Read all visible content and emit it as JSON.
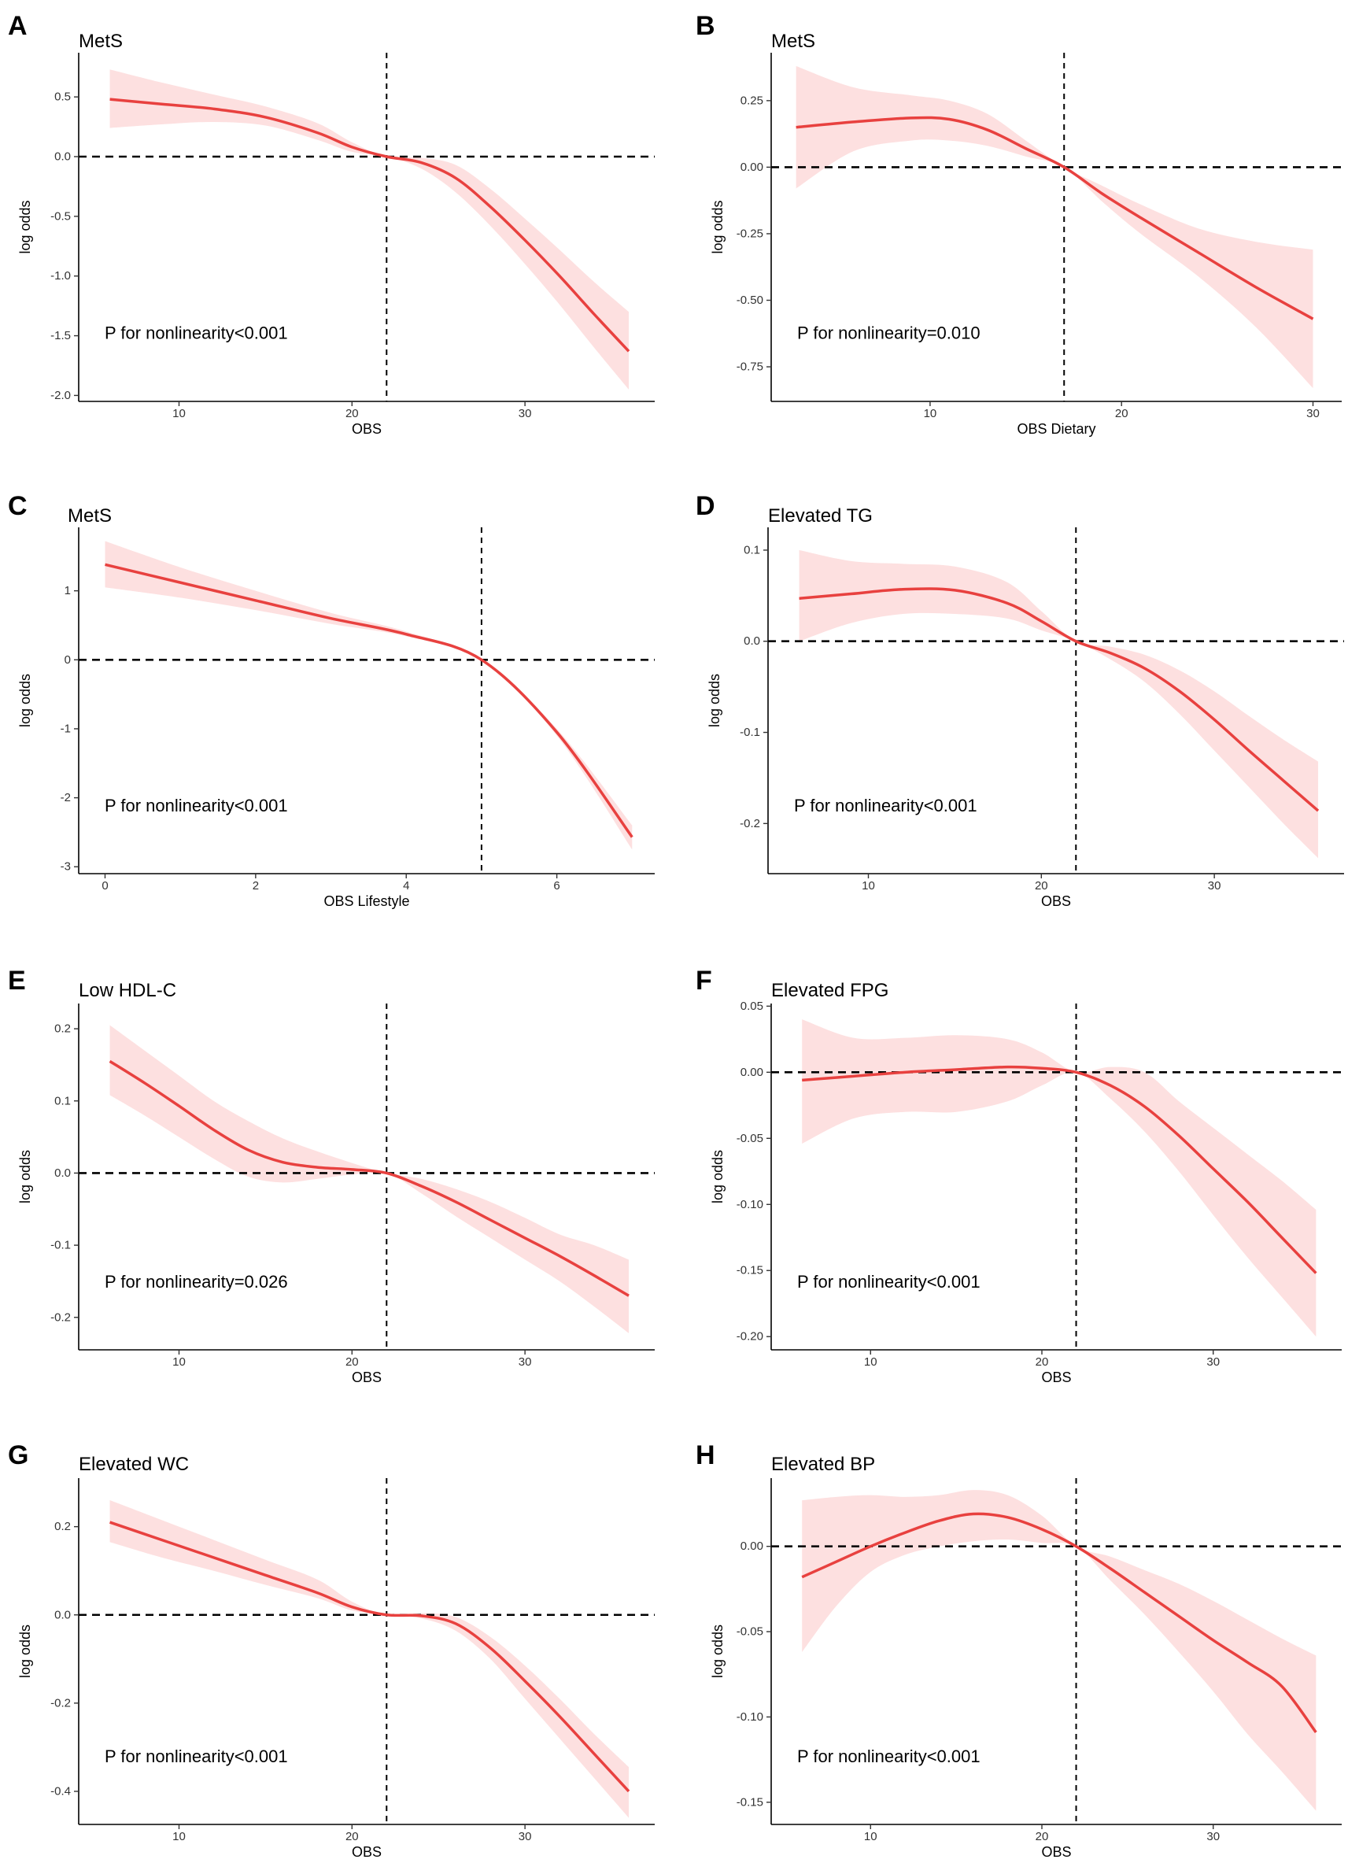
{
  "colors": {
    "line": "#e8413f",
    "band": "#fde0e0",
    "axis": "#000000",
    "tick_text": "#333333"
  },
  "chart_data": [
    {
      "letter": "A",
      "type": "line",
      "title": "MetS",
      "xlabel": "OBS",
      "ylabel": "log odds",
      "xlim": [
        4.2,
        37.5
      ],
      "ylim": [
        -2.05,
        0.87
      ],
      "xticks": [
        10,
        20,
        30
      ],
      "xtick_labels": [
        "10",
        "20",
        "30"
      ],
      "yticks": [
        -2.0,
        -1.5,
        -1.0,
        -0.5,
        0.0,
        0.5
      ],
      "ytick_labels": [
        "-2.0",
        "-1.5",
        "-1.0",
        "-0.5",
        "0.0",
        "0.5"
      ],
      "hline_y": 0,
      "vline_x": 22,
      "annotation": "P for nonlinearity<0.001",
      "x": [
        6,
        9,
        12,
        15,
        18,
        20,
        22,
        24,
        26,
        28,
        30,
        32,
        34,
        36
      ],
      "y": [
        0.48,
        0.44,
        0.4,
        0.33,
        0.2,
        0.08,
        0.0,
        -0.05,
        -0.18,
        -0.42,
        -0.7,
        -1.0,
        -1.32,
        -1.63
      ],
      "lower": [
        0.24,
        0.27,
        0.29,
        0.26,
        0.14,
        0.04,
        0.0,
        -0.1,
        -0.3,
        -0.58,
        -0.9,
        -1.24,
        -1.6,
        -1.95
      ],
      "upper": [
        0.73,
        0.62,
        0.52,
        0.42,
        0.28,
        0.12,
        0.0,
        -0.01,
        -0.07,
        -0.27,
        -0.52,
        -0.78,
        -1.05,
        -1.3
      ]
    },
    {
      "letter": "B",
      "type": "line",
      "title": "MetS",
      "xlabel": "OBS Dietary",
      "ylabel": "log odds",
      "xlim": [
        1.7,
        31.5
      ],
      "ylim": [
        -0.88,
        0.43
      ],
      "xticks": [
        10,
        20,
        30
      ],
      "xtick_labels": [
        "10",
        "20",
        "30"
      ],
      "yticks": [
        -0.75,
        -0.5,
        -0.25,
        0.0,
        0.25
      ],
      "ytick_labels": [
        "-0.75",
        "-0.50",
        "-0.25",
        "0.00",
        "0.25"
      ],
      "hline_y": 0,
      "vline_x": 17,
      "annotation": "P for nonlinearity=0.010",
      "x": [
        3,
        6,
        9,
        11,
        13,
        15,
        17,
        19,
        21,
        24,
        27,
        30
      ],
      "y": [
        0.15,
        0.17,
        0.185,
        0.18,
        0.14,
        0.07,
        0.0,
        -0.1,
        -0.19,
        -0.32,
        -0.45,
        -0.57
      ],
      "lower": [
        -0.08,
        0.06,
        0.1,
        0.1,
        0.08,
        0.04,
        0.0,
        -0.13,
        -0.25,
        -0.41,
        -0.6,
        -0.83
      ],
      "upper": [
        0.38,
        0.3,
        0.27,
        0.25,
        0.2,
        0.1,
        0.0,
        -0.07,
        -0.14,
        -0.23,
        -0.28,
        -0.31
      ]
    },
    {
      "letter": "C",
      "type": "line",
      "title": "MetS",
      "xlabel": "OBS Lifestyle",
      "ylabel": "log odds",
      "xlim": [
        -0.35,
        7.3
      ],
      "ylim": [
        -3.1,
        1.92
      ],
      "xticks": [
        0,
        2,
        4,
        6
      ],
      "xtick_labels": [
        "0",
        "2",
        "4",
        "6"
      ],
      "yticks": [
        -3,
        -2,
        -1,
        0,
        1
      ],
      "ytick_labels": [
        "-3",
        "-2",
        "-1",
        "0",
        "1"
      ],
      "hline_y": 0,
      "vline_x": 5,
      "annotation": "P for nonlinearity<0.001",
      "x": [
        0,
        1,
        2,
        3,
        4,
        5,
        6,
        7
      ],
      "y": [
        1.38,
        1.12,
        0.86,
        0.6,
        0.37,
        0.0,
        -1.05,
        -2.57
      ],
      "lower": [
        1.05,
        0.9,
        0.72,
        0.52,
        0.34,
        0.0,
        -1.1,
        -2.75
      ],
      "upper": [
        1.72,
        1.34,
        1.0,
        0.68,
        0.41,
        0.0,
        -1.0,
        -2.4
      ]
    },
    {
      "letter": "D",
      "type": "line",
      "title": "Elevated TG",
      "xlabel": "OBS",
      "ylabel": "log odds",
      "xlim": [
        4.2,
        37.5
      ],
      "ylim": [
        -0.255,
        0.125
      ],
      "xticks": [
        10,
        20,
        30
      ],
      "xtick_labels": [
        "10",
        "20",
        "30"
      ],
      "yticks": [
        -0.2,
        -0.1,
        0.0,
        0.1
      ],
      "ytick_labels": [
        "-0.2",
        "-0.1",
        "0.0",
        "0.1"
      ],
      "hline_y": 0,
      "vline_x": 22,
      "annotation": "P for nonlinearity<0.001",
      "x": [
        6,
        9,
        12,
        15,
        18,
        20,
        22,
        24,
        26,
        28,
        30,
        32,
        34,
        36
      ],
      "y": [
        0.047,
        0.052,
        0.057,
        0.056,
        0.042,
        0.022,
        0.0,
        -0.013,
        -0.03,
        -0.055,
        -0.086,
        -0.12,
        -0.153,
        -0.186
      ],
      "lower": [
        0.0,
        0.02,
        0.03,
        0.03,
        0.025,
        0.012,
        0.0,
        -0.02,
        -0.045,
        -0.08,
        -0.12,
        -0.16,
        -0.2,
        -0.238
      ],
      "upper": [
        0.1,
        0.088,
        0.085,
        0.082,
        0.065,
        0.033,
        0.0,
        -0.006,
        -0.015,
        -0.032,
        -0.055,
        -0.082,
        -0.108,
        -0.132
      ]
    },
    {
      "letter": "E",
      "type": "line",
      "title": "Low HDL-C",
      "xlabel": "OBS",
      "ylabel": "log odds",
      "xlim": [
        4.2,
        37.5
      ],
      "ylim": [
        -0.245,
        0.235
      ],
      "xticks": [
        10,
        20,
        30
      ],
      "xtick_labels": [
        "10",
        "20",
        "30"
      ],
      "yticks": [
        -0.2,
        -0.1,
        0.0,
        0.1,
        0.2
      ],
      "ytick_labels": [
        "-0.2",
        "-0.1",
        "0.0",
        "0.1",
        "0.2"
      ],
      "hline_y": 0,
      "vline_x": 22,
      "annotation": "P for nonlinearity=0.026",
      "x": [
        6,
        8,
        10,
        12,
        14,
        16,
        18,
        20,
        22,
        24,
        26,
        28,
        30,
        32,
        34,
        36
      ],
      "y": [
        0.155,
        0.125,
        0.093,
        0.06,
        0.032,
        0.015,
        0.008,
        0.005,
        0.0,
        -0.018,
        -0.04,
        -0.065,
        -0.09,
        -0.115,
        -0.142,
        -0.17
      ],
      "lower": [
        0.108,
        0.08,
        0.05,
        0.02,
        -0.005,
        -0.013,
        -0.008,
        -0.002,
        0.0,
        -0.028,
        -0.06,
        -0.09,
        -0.12,
        -0.15,
        -0.185,
        -0.222
      ],
      "upper": [
        0.205,
        0.17,
        0.135,
        0.1,
        0.072,
        0.048,
        0.03,
        0.014,
        0.0,
        -0.008,
        -0.022,
        -0.04,
        -0.062,
        -0.085,
        -0.1,
        -0.12
      ]
    },
    {
      "letter": "F",
      "type": "line",
      "title": "Elevated FPG",
      "xlabel": "OBS",
      "ylabel": "log odds",
      "xlim": [
        4.2,
        37.5
      ],
      "ylim": [
        -0.21,
        0.052
      ],
      "xticks": [
        10,
        20,
        30
      ],
      "xtick_labels": [
        "10",
        "20",
        "30"
      ],
      "yticks": [
        -0.2,
        -0.15,
        -0.1,
        -0.05,
        0.0,
        0.05
      ],
      "ytick_labels": [
        "-0.20",
        "-0.15",
        "-0.10",
        "-0.05",
        "0.00",
        "0.05"
      ],
      "hline_y": 0,
      "vline_x": 22,
      "annotation": "P for nonlinearity<0.001",
      "x": [
        6,
        9,
        12,
        15,
        18,
        20,
        22,
        24,
        26,
        28,
        30,
        32,
        34,
        36
      ],
      "y": [
        -0.006,
        -0.003,
        0.0,
        0.002,
        0.004,
        0.003,
        0.0,
        -0.01,
        -0.026,
        -0.048,
        -0.073,
        -0.098,
        -0.125,
        -0.152
      ],
      "lower": [
        -0.054,
        -0.035,
        -0.03,
        -0.03,
        -0.022,
        -0.01,
        0.0,
        -0.02,
        -0.045,
        -0.075,
        -0.108,
        -0.14,
        -0.17,
        -0.2
      ],
      "upper": [
        0.04,
        0.026,
        0.026,
        0.028,
        0.025,
        0.015,
        0.0,
        0.004,
        0.0,
        -0.022,
        -0.042,
        -0.062,
        -0.082,
        -0.104
      ]
    },
    {
      "letter": "G",
      "type": "line",
      "title": "Elevated WC",
      "xlabel": "OBS",
      "ylabel": "log odds",
      "xlim": [
        4.2,
        37.5
      ],
      "ylim": [
        -0.475,
        0.31
      ],
      "xticks": [
        10,
        20,
        30
      ],
      "xtick_labels": [
        "10",
        "20",
        "30"
      ],
      "yticks": [
        -0.4,
        -0.2,
        0.0,
        0.2
      ],
      "ytick_labels": [
        "-0.4",
        "-0.2",
        "0.0",
        "0.2"
      ],
      "hline_y": 0,
      "vline_x": 22,
      "annotation": "P for nonlinearity<0.001",
      "x": [
        6,
        9,
        12,
        15,
        18,
        20,
        22,
        24,
        26,
        28,
        30,
        32,
        34,
        36
      ],
      "y": [
        0.21,
        0.17,
        0.13,
        0.09,
        0.05,
        0.018,
        0.0,
        -0.002,
        -0.02,
        -0.075,
        -0.15,
        -0.23,
        -0.315,
        -0.4
      ],
      "lower": [
        0.165,
        0.13,
        0.1,
        0.068,
        0.038,
        0.01,
        0.0,
        -0.008,
        -0.036,
        -0.1,
        -0.19,
        -0.28,
        -0.37,
        -0.46
      ],
      "upper": [
        0.26,
        0.215,
        0.17,
        0.125,
        0.08,
        0.03,
        0.0,
        0.004,
        -0.005,
        -0.05,
        -0.115,
        -0.19,
        -0.27,
        -0.345
      ]
    },
    {
      "letter": "H",
      "type": "line",
      "title": "Elevated BP",
      "xlabel": "OBS",
      "ylabel": "log odds",
      "xlim": [
        4.2,
        37.5
      ],
      "ylim": [
        -0.163,
        0.04
      ],
      "xticks": [
        10,
        20,
        30
      ],
      "xtick_labels": [
        "10",
        "20",
        "30"
      ],
      "yticks": [
        -0.15,
        -0.1,
        -0.05,
        0.0
      ],
      "ytick_labels": [
        "-0.15",
        "-0.10",
        "-0.05",
        "0.00"
      ],
      "hline_y": 0,
      "vline_x": 22,
      "annotation": "P for nonlinearity<0.001",
      "x": [
        6,
        8,
        10,
        12,
        14,
        16,
        18,
        20,
        22,
        24,
        26,
        28,
        30,
        32,
        34,
        36
      ],
      "y": [
        -0.018,
        -0.009,
        0.0,
        0.008,
        0.015,
        0.019,
        0.017,
        0.01,
        0.0,
        -0.013,
        -0.027,
        -0.041,
        -0.055,
        -0.068,
        -0.082,
        -0.109
      ],
      "lower": [
        -0.062,
        -0.035,
        -0.015,
        -0.005,
        0.0,
        0.003,
        0.004,
        0.002,
        0.0,
        -0.02,
        -0.04,
        -0.062,
        -0.085,
        -0.11,
        -0.132,
        -0.155
      ],
      "upper": [
        0.027,
        0.029,
        0.03,
        0.029,
        0.03,
        0.033,
        0.03,
        0.018,
        0.0,
        -0.006,
        -0.014,
        -0.022,
        -0.032,
        -0.043,
        -0.054,
        -0.064
      ]
    }
  ]
}
